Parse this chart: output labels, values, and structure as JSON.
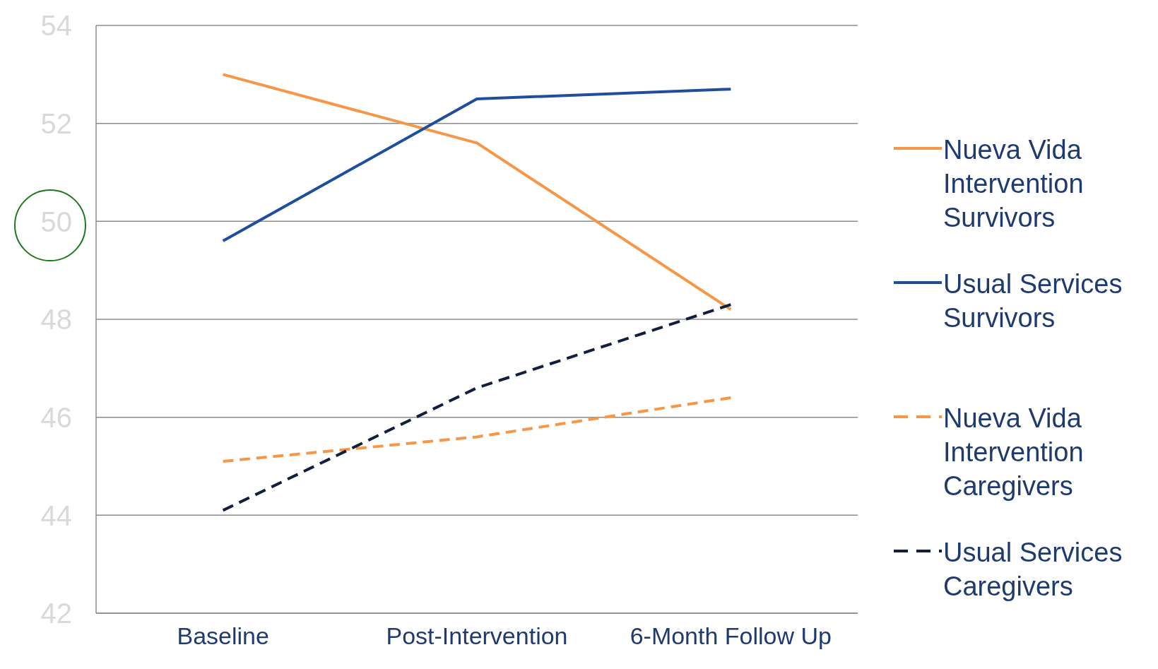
{
  "chart_data": {
    "type": "line",
    "categories": [
      "Baseline",
      "Post-Intervention",
      "6-Month Follow Up"
    ],
    "series": [
      {
        "name": "Nueva Vida Intervention Survivors",
        "color": "#f79646",
        "values": [
          53.0,
          51.6,
          48.2
        ],
        "line_style": "solid"
      },
      {
        "name": "Usual Services Survivors",
        "color": "#1f4e9c",
        "values": [
          49.6,
          52.5,
          52.7
        ],
        "line_style": "solid"
      },
      {
        "name": "Nueva Vida Intervention Caregivers",
        "color": "#f79646",
        "values": [
          45.1,
          45.6,
          46.4
        ],
        "line_style": "dashed"
      },
      {
        "name": "Usual Services Caregivers",
        "color": "#0f1f3d",
        "values": [
          44.1,
          46.6,
          48.3
        ],
        "line_style": "dashed"
      }
    ],
    "ylim": [
      42,
      54
    ],
    "yticks": [
      42,
      44,
      46,
      48,
      50,
      52,
      54
    ],
    "grid": "y",
    "legend": "right"
  }
}
